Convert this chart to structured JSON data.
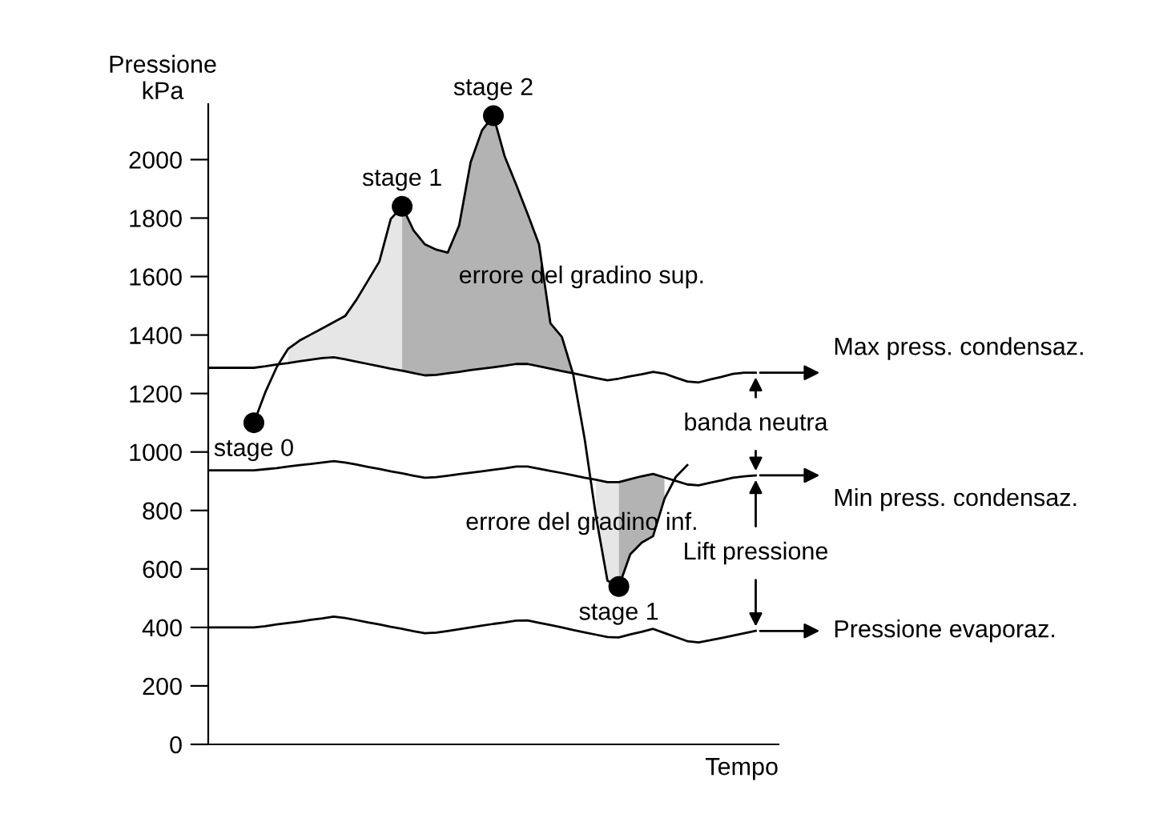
{
  "chart_data": {
    "type": "line",
    "ylabel": "Pressione\nkPa",
    "xlabel": "Tempo",
    "categories": [
      null,
      null,
      null,
      null,
      null,
      null,
      null,
      null,
      null,
      null,
      null,
      null,
      null,
      null,
      null,
      null,
      null,
      null,
      null,
      null,
      null,
      null,
      null,
      null,
      null,
      null,
      null,
      null,
      null,
      null,
      null,
      null,
      null,
      null,
      null,
      null,
      null,
      null,
      null,
      null,
      null,
      null,
      null,
      null,
      null,
      null,
      null,
      null,
      null
    ],
    "ylim": [
      0,
      2190
    ],
    "yticks": [
      0,
      200,
      400,
      600,
      800,
      1000,
      1200,
      1400,
      1600,
      1800,
      2000
    ],
    "tick_labels": "y",
    "grid": false,
    "legend": "right",
    "series": [
      {
        "type": "area",
        "color": "#e6e6e6",
        "values": [
          null,
          null,
          null,
          null,
          null,
          null,
          null,
          1353,
          1381,
          1402,
          1423,
          1444,
          1465,
          1521,
          1586,
          1651,
          1797,
          1840,
          null,
          null,
          null,
          null,
          null,
          null,
          null,
          null,
          null,
          null,
          null,
          null,
          null,
          null,
          null,
          null,
          null,
          null,
          null,
          null,
          null,
          null,
          null,
          null,
          null,
          null,
          null,
          null,
          null,
          null,
          null
        ]
      },
      {
        "type": "area",
        "color": "#b3b3b3",
        "values": [
          null,
          null,
          null,
          null,
          null,
          null,
          null,
          null,
          null,
          null,
          null,
          null,
          null,
          null,
          null,
          null,
          null,
          1840,
          1758,
          1710,
          1692,
          1682,
          1775,
          1990,
          2100,
          2150,
          2010,
          1914,
          1814,
          1710,
          1440,
          1394,
          1265,
          null,
          null,
          null,
          null,
          null,
          null,
          null,
          null,
          null,
          null,
          null,
          null,
          null,
          null,
          null,
          null
        ]
      },
      {
        "type": "area",
        "color": "#e6e6e6",
        "values": [
          null,
          null,
          null,
          null,
          null,
          null,
          null,
          null,
          null,
          null,
          null,
          null,
          null,
          null,
          null,
          null,
          null,
          null,
          null,
          null,
          null,
          null,
          null,
          null,
          null,
          null,
          null,
          null,
          null,
          null,
          null,
          null,
          null,
          null,
          905,
          897,
          897,
          null,
          null,
          null,
          null,
          null,
          null,
          null,
          null,
          null,
          null,
          null,
          null
        ]
      },
      {
        "type": "area",
        "color": "#b3b3b3",
        "values": [
          null,
          null,
          null,
          null,
          null,
          null,
          null,
          null,
          null,
          null,
          null,
          null,
          null,
          null,
          null,
          null,
          null,
          null,
          null,
          null,
          null,
          null,
          null,
          null,
          null,
          null,
          null,
          null,
          null,
          null,
          null,
          null,
          null,
          null,
          null,
          null,
          897,
          907,
          917,
          925,
          913,
          null,
          null,
          null,
          null,
          null,
          null,
          null,
          null
        ]
      },
      {
        "type": "line",
        "name": "Max press. condensaz.",
        "color": "#000000",
        "values": [
          1288,
          1288,
          1288,
          1288,
          1288,
          1293,
          1299,
          1304,
          1310,
          1316,
          1321,
          1324,
          1317,
          1309,
          1301,
          1293,
          1285,
          1278,
          1270,
          1262,
          1264,
          1269,
          1274,
          1280,
          1285,
          1290,
          1295,
          1301,
          1301,
          1293,
          1285,
          1277,
          1269,
          1261,
          1253,
          1245,
          1251,
          1259,
          1266,
          1274,
          1268,
          1254,
          1241,
          1238,
          1248,
          1257,
          1267,
          1271,
          1271
        ]
      },
      {
        "type": "line",
        "name": "Min press. condensaz.",
        "color": "#000000",
        "values": [
          937,
          937,
          937,
          937,
          937,
          941,
          945,
          950,
          955,
          959,
          964,
          969,
          964,
          957,
          949,
          942,
          934,
          927,
          919,
          912,
          914,
          919,
          924,
          929,
          934,
          939,
          944,
          950,
          950,
          943,
          935,
          928,
          920,
          912,
          905,
          897,
          897,
          907,
          917,
          925,
          913,
          901,
          889,
          886,
          895,
          903,
          912,
          917,
          920
        ]
      },
      {
        "type": "line",
        "name": "Pressione evaporaz.",
        "color": "#000000",
        "values": [
          400,
          400,
          400,
          400,
          400,
          404,
          410,
          415,
          420,
          426,
          431,
          437,
          432,
          425,
          417,
          410,
          402,
          395,
          387,
          380,
          382,
          388,
          394,
          400,
          406,
          412,
          417,
          423,
          424,
          416,
          408,
          400,
          391,
          383,
          375,
          367,
          366,
          376,
          385,
          395,
          381,
          367,
          353,
          349,
          356,
          364,
          372,
          380,
          388
        ]
      },
      {
        "type": "line",
        "color": "#000000",
        "values": [
          null,
          null,
          null,
          null,
          1100,
          1204,
          1290,
          1353,
          1381,
          1402,
          1423,
          1444,
          1465,
          1521,
          1586,
          1651,
          1797,
          1840,
          1758,
          1710,
          1692,
          1682,
          1775,
          1990,
          2100,
          2150,
          2010,
          1914,
          1814,
          1710,
          1440,
          1394,
          1265,
          1045,
          778,
          560,
          540,
          650,
          690,
          712,
          840,
          915,
          955,
          null,
          null,
          null,
          null,
          null,
          null
        ]
      },
      {
        "type": "scatter",
        "color": "#000000",
        "marker": "circle",
        "values": [
          null,
          null,
          null,
          null,
          1100,
          null,
          null,
          null,
          null,
          null,
          null,
          null,
          null,
          null,
          null,
          null,
          null,
          1840,
          null,
          null,
          null,
          null,
          null,
          null,
          null,
          2150,
          null,
          null,
          null,
          null,
          null,
          null,
          null,
          null,
          null,
          null,
          540,
          null,
          null,
          null,
          null,
          null,
          null,
          null,
          null,
          null,
          null,
          null,
          null
        ]
      }
    ],
    "annotations": [
      "stage 0",
      "stage 1",
      "stage 2",
      "stage 1",
      "errore del gradino sup.",
      "errore del gradino inf.",
      "banda neutra",
      "Lift pressione"
    ]
  }
}
